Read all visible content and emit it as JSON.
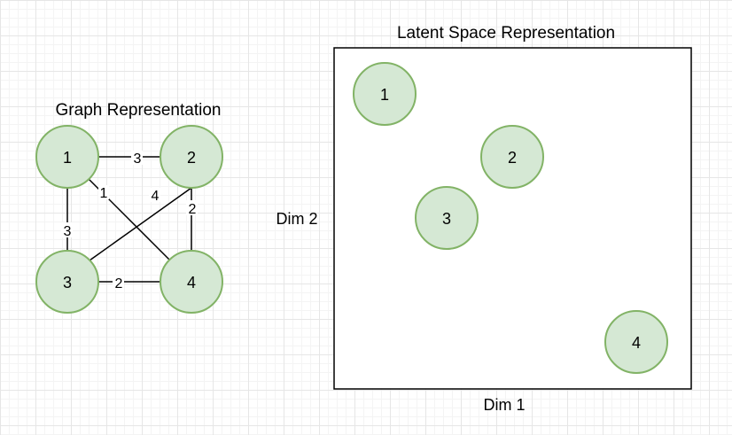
{
  "graph": {
    "title": "Graph Representation",
    "nodes": [
      {
        "id": "1",
        "label": "1"
      },
      {
        "id": "2",
        "label": "2"
      },
      {
        "id": "3",
        "label": "3"
      },
      {
        "id": "4",
        "label": "4"
      }
    ],
    "edges": [
      {
        "from": "1",
        "to": "2",
        "weight": "3"
      },
      {
        "from": "1",
        "to": "3",
        "weight": "3"
      },
      {
        "from": "1",
        "to": "4",
        "weight": "1"
      },
      {
        "from": "2",
        "to": "3",
        "weight": "4"
      },
      {
        "from": "2",
        "to": "4",
        "weight": "2"
      },
      {
        "from": "3",
        "to": "4",
        "weight": "2"
      }
    ]
  },
  "latent": {
    "title": "Latent Space Representation",
    "xlabel": "Dim 1",
    "ylabel": "Dim 2",
    "points": [
      {
        "label": "1"
      },
      {
        "label": "2"
      },
      {
        "label": "3"
      },
      {
        "label": "4"
      }
    ]
  },
  "colors": {
    "node_fill": "#d5e8d4",
    "node_stroke": "#82b366"
  }
}
